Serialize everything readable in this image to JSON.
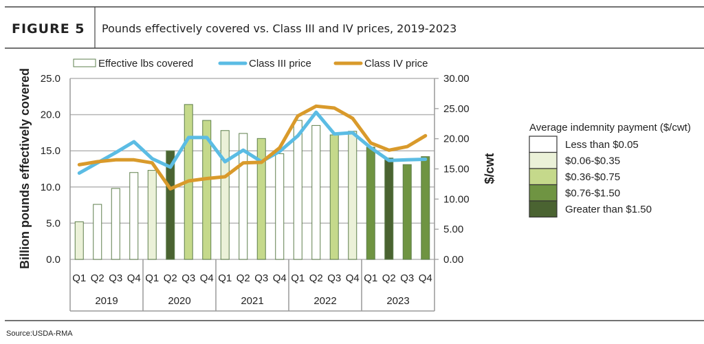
{
  "figure_label": "FIGURE 5",
  "source": "Source:USDA-RMA",
  "colors": {
    "class3_line": "#5bbce4",
    "class4_line": "#d99a2b",
    "bar_outline": "#5e7f4c",
    "tiers": [
      "#ffffff",
      "#ebf1d8",
      "#c5d98b",
      "#6f9442",
      "#4a6331"
    ]
  },
  "chart_data": {
    "type": "bar+line",
    "title": "Pounds effectively covered vs. Class III and IV prices, 2019-2023",
    "ylabel": "Billion pounds effectively covered",
    "y2label": "$/cwt",
    "ylim": [
      0,
      25
    ],
    "y2lim": [
      0,
      30
    ],
    "yticks": [
      "0.0",
      "5.0",
      "10.0",
      "15.0",
      "20.0",
      "25.0"
    ],
    "y2ticks": [
      "0.00",
      "5.00",
      "10.00",
      "15.00",
      "20.00",
      "25.00",
      "30.00"
    ],
    "grid": true,
    "quarters": [
      "Q1",
      "Q2",
      "Q3",
      "Q4",
      "Q1",
      "Q2",
      "Q3",
      "Q4",
      "Q1",
      "Q2",
      "Q3",
      "Q4",
      "Q1",
      "Q2",
      "Q3",
      "Q4",
      "Q1",
      "Q2",
      "Q3",
      "Q4"
    ],
    "years": [
      "2019",
      "2020",
      "2021",
      "2022",
      "2023"
    ],
    "legend": {
      "position": "top",
      "bars": "Effective lbs covered",
      "class3": "Class III price",
      "class4": "Class IV price"
    },
    "tier_legend": {
      "title": "Average indemnity payment ($/cwt)",
      "position": "right",
      "items": [
        "Less than $0.05",
        "$0.06-$0.35",
        "$0.36-$0.75",
        "$0.76-$1.50",
        "Greater than $1.50"
      ]
    },
    "series": [
      {
        "name": "Effective lbs covered",
        "type": "bar",
        "axis": "left",
        "values": [
          5.2,
          7.6,
          9.8,
          12.0,
          12.3,
          15.0,
          21.4,
          19.2,
          17.8,
          17.4,
          16.7,
          14.6,
          19.2,
          18.5,
          17.2,
          17.7,
          15.5,
          14.0,
          13.1,
          14.2
        ],
        "tier": [
          1,
          0,
          0,
          0,
          1,
          4,
          2,
          2,
          1,
          0,
          2,
          0,
          0,
          0,
          2,
          1,
          3,
          4,
          3,
          3
        ]
      },
      {
        "name": "Class III price",
        "type": "line",
        "axis": "right",
        "values": [
          14.3,
          16.0,
          17.7,
          19.5,
          16.7,
          15.3,
          20.2,
          20.2,
          16.2,
          18.1,
          16.2,
          17.9,
          20.5,
          24.4,
          20.8,
          21.0,
          18.5,
          16.4,
          16.5,
          16.6
        ]
      },
      {
        "name": "Class IV price",
        "type": "line",
        "axis": "right",
        "values": [
          15.7,
          16.2,
          16.5,
          16.5,
          16.0,
          11.7,
          13.0,
          13.4,
          13.7,
          16.0,
          16.1,
          18.5,
          23.8,
          25.4,
          25.1,
          23.4,
          19.3,
          18.1,
          18.7,
          20.5
        ]
      }
    ]
  }
}
